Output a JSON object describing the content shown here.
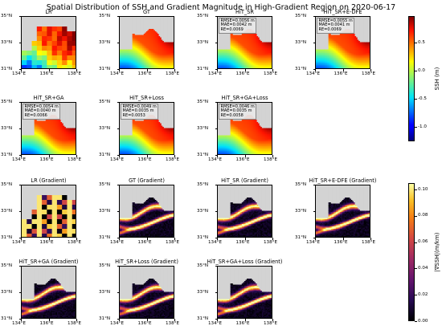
{
  "figure": {
    "title": "Spatial Distribution of SSH and Gradient Magnitude in High-Gradient Region on 2020-06-17"
  },
  "axes": {
    "x_ticks": [
      "134°E",
      "136°E",
      "138°E"
    ],
    "y_ticks": [
      "31°N",
      "33°N",
      "35°N"
    ]
  },
  "colorbars": [
    {
      "label": "SSH (m)",
      "colormap": "jet",
      "ticks": [
        "-1.0",
        "-0.5",
        "0.0",
        "0.5"
      ],
      "tick_values": [
        -1.0,
        -0.5,
        0.0,
        0.5
      ],
      "range": [
        -1.25,
        0.97
      ]
    },
    {
      "label": "|∇SSH|(m/km)",
      "colormap": "inferno",
      "ticks": [
        "0.00",
        "0.02",
        "0.04",
        "0.06",
        "0.08",
        "0.10"
      ],
      "tick_values": [
        0.0,
        0.02,
        0.04,
        0.06,
        0.08,
        0.1
      ],
      "range": [
        0.0,
        0.105
      ]
    }
  ],
  "chart_data": {
    "type": "heatmap",
    "date": "2020-06-17",
    "lon_range": [
      134,
      138
    ],
    "lat_range": [
      31,
      35
    ],
    "land_color": "#d3d3d3",
    "panels": [
      {
        "title": "LR",
        "field": "ssh",
        "variant": "lr",
        "metrics": []
      },
      {
        "title": "GT",
        "field": "ssh",
        "variant": "gt",
        "metrics": []
      },
      {
        "title": "HiT_SR",
        "field": "ssh",
        "variant": "sr",
        "metrics": [
          "RMSE=0.0056 m",
          "MAE=0.0042 m",
          "RE=0.0069"
        ]
      },
      {
        "title": "HiT_SR+E-DFE",
        "field": "ssh",
        "variant": "sr",
        "metrics": [
          "RMSE=0.0055 m",
          "MAE=0.0041 m",
          "RE=0.0069"
        ]
      },
      {
        "title": "HiT_SR+GA",
        "field": "ssh",
        "variant": "sr",
        "metrics": [
          "RMSE=0.0054 m",
          "MAE=0.0040 m",
          "RE=0.0066"
        ]
      },
      {
        "title": "HiT_SR+Loss",
        "field": "ssh",
        "variant": "sr",
        "metrics": [
          "RMSE=0.0049 m",
          "MAE=0.0035 m",
          "RE=0.0053"
        ]
      },
      {
        "title": "HiT_SR+GA+Loss",
        "field": "ssh",
        "variant": "sr",
        "metrics": [
          "RMSE=0.0046 m",
          "MAE=0.0035 m",
          "RE=0.0058"
        ]
      },
      {
        "title": "LR (Gradient)",
        "field": "grad",
        "variant": "lr",
        "metrics": []
      },
      {
        "title": "GT (Gradient)",
        "field": "grad",
        "variant": "gt",
        "metrics": []
      },
      {
        "title": "HiT_SR (Gradient)",
        "field": "grad",
        "variant": "sr",
        "metrics": []
      },
      {
        "title": "HiT_SR+E-DFE (Gradient)",
        "field": "grad",
        "variant": "sr",
        "metrics": []
      },
      {
        "title": "HiT_SR+GA (Gradient)",
        "field": "grad",
        "variant": "sr",
        "metrics": []
      },
      {
        "title": "HiT_SR+Loss (Gradient)",
        "field": "grad",
        "variant": "sr",
        "metrics": []
      },
      {
        "title": "HiT_SR+GA+Loss (Gradient)",
        "field": "grad",
        "variant": "sr",
        "metrics": []
      }
    ]
  }
}
